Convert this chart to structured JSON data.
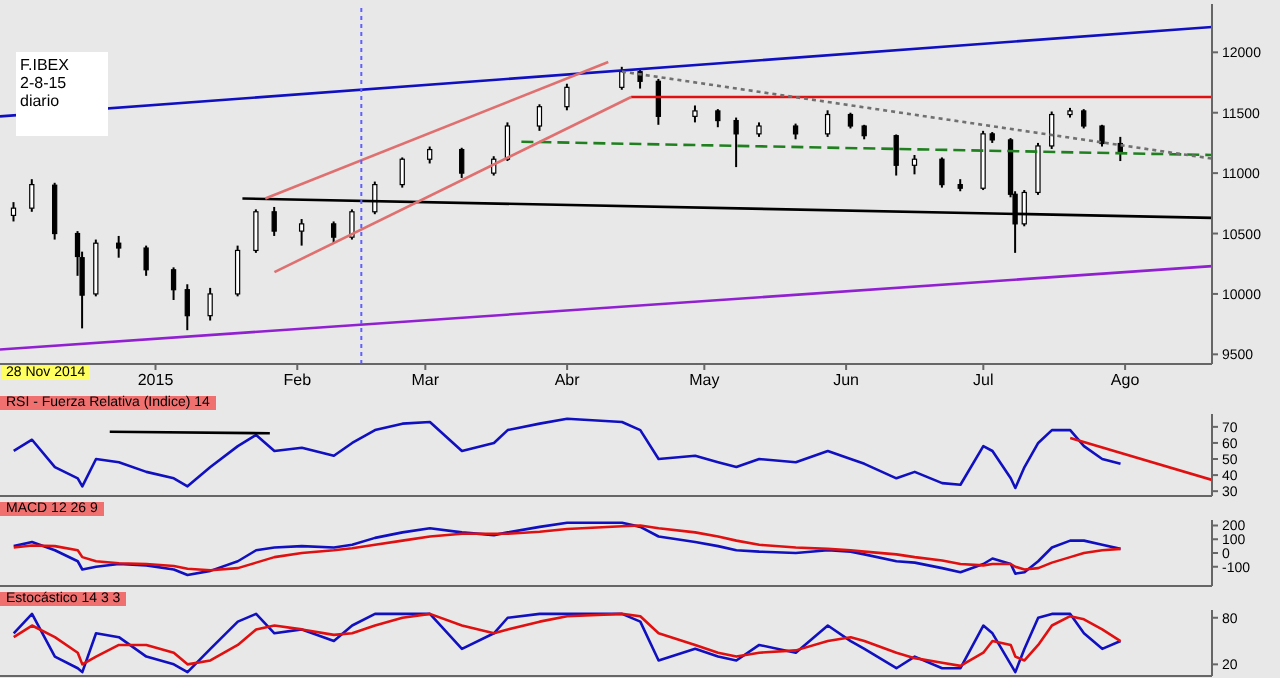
{
  "chart_data": [
    {
      "type": "candlestick",
      "annotations": [
        "F.IBEX\n2-8-15\ndiario",
        "28 Nov 2014"
      ],
      "x": [
        "2014-12-01",
        "2014-12-05",
        "2014-12-10",
        "2014-12-15",
        "2014-12-16",
        "2014-12-19",
        "2014-12-24",
        "2014-12-30",
        "2015-01-05",
        "2015-01-08",
        "2015-01-13",
        "2015-01-19",
        "2015-01-23",
        "2015-01-27",
        "2015-02-02",
        "2015-02-09",
        "2015-02-13",
        "2015-02-18",
        "2015-02-24",
        "2015-03-02",
        "2015-03-09",
        "2015-03-16",
        "2015-03-19",
        "2015-03-26",
        "2015-04-01",
        "2015-04-13",
        "2015-04-17",
        "2015-04-21",
        "2015-04-29",
        "2015-05-04",
        "2015-05-08",
        "2015-05-13",
        "2015-05-21",
        "2015-05-28",
        "2015-06-02",
        "2015-06-05",
        "2015-06-12",
        "2015-06-16",
        "2015-06-22",
        "2015-06-26",
        "2015-07-01",
        "2015-07-03",
        "2015-07-07",
        "2015-07-08",
        "2015-07-10",
        "2015-07-13",
        "2015-07-16",
        "2015-07-20",
        "2015-07-23",
        "2015-07-27",
        "2015-07-31"
      ],
      "ohlc": [
        [
          10650,
          10760,
          10600,
          10710
        ],
        [
          10710,
          10950,
          10680,
          10905
        ],
        [
          10900,
          10920,
          10450,
          10500
        ],
        [
          10500,
          10520,
          10150,
          10310
        ],
        [
          10300,
          10350,
          9715,
          9990
        ],
        [
          10000,
          10450,
          9980,
          10420
        ],
        [
          10420,
          10480,
          10300,
          10380
        ],
        [
          10380,
          10400,
          10150,
          10200
        ],
        [
          10200,
          10220,
          9950,
          10035
        ],
        [
          10035,
          10080,
          9700,
          9820
        ],
        [
          9820,
          10050,
          9780,
          10000
        ],
        [
          10000,
          10400,
          9980,
          10360
        ],
        [
          10360,
          10700,
          10340,
          10680
        ],
        [
          10680,
          10720,
          10480,
          10520
        ],
        [
          10520,
          10620,
          10400,
          10580
        ],
        [
          10580,
          10600,
          10420,
          10470
        ],
        [
          10470,
          10700,
          10450,
          10680
        ],
        [
          10680,
          10930,
          10660,
          10905
        ],
        [
          10905,
          11130,
          10880,
          11115
        ],
        [
          11115,
          11220,
          11080,
          11195
        ],
        [
          11195,
          11210,
          10960,
          11000
        ],
        [
          11000,
          11140,
          10980,
          11115
        ],
        [
          11115,
          11420,
          11100,
          11390
        ],
        [
          11390,
          11570,
          11350,
          11550
        ],
        [
          11550,
          11740,
          11520,
          11710
        ],
        [
          11710,
          11880,
          11690,
          11840
        ],
        [
          11840,
          11860,
          11700,
          11760
        ],
        [
          11760,
          11780,
          11400,
          11470
        ],
        [
          11470,
          11560,
          11420,
          11515
        ],
        [
          11515,
          11530,
          11380,
          11435
        ],
        [
          11435,
          11460,
          11050,
          11325
        ],
        [
          11325,
          11420,
          11300,
          11390
        ],
        [
          11390,
          11410,
          11280,
          11325
        ],
        [
          11325,
          11520,
          11300,
          11485
        ],
        [
          11485,
          11500,
          11370,
          11390
        ],
        [
          11390,
          11400,
          11280,
          11310
        ],
        [
          11310,
          11320,
          10980,
          11065
        ],
        [
          11065,
          11150,
          10990,
          11115
        ],
        [
          11115,
          11130,
          10880,
          10905
        ],
        [
          10905,
          10950,
          10850,
          10875
        ],
        [
          10875,
          11350,
          10860,
          11325
        ],
        [
          11325,
          11340,
          11250,
          11275
        ],
        [
          11275,
          11290,
          10800,
          10825
        ],
        [
          10825,
          10850,
          10340,
          10580
        ],
        [
          10580,
          10860,
          10560,
          10840
        ],
        [
          10840,
          11250,
          10820,
          11225
        ],
        [
          11225,
          11510,
          11200,
          11485
        ],
        [
          11485,
          11540,
          11460,
          11515
        ],
        [
          11515,
          11530,
          11370,
          11390
        ],
        [
          11390,
          11400,
          11220,
          11245
        ],
        [
          11245,
          11300,
          11100,
          11170
        ]
      ],
      "series": [
        {
          "type": "line",
          "color": "#1010c0",
          "x": [
            "2014-11-28",
            "2015-08-20"
          ],
          "values": [
            11470,
            12210
          ]
        },
        {
          "type": "line",
          "color": "#9020d0",
          "x": [
            "2014-11-28",
            "2015-08-20"
          ],
          "values": [
            9540,
            10230
          ]
        },
        {
          "type": "line",
          "color": "#000000",
          "x": [
            "2015-01-20",
            "2015-08-20"
          ],
          "values": [
            10790,
            10630
          ]
        },
        {
          "type": "line",
          "color": "#e01010",
          "x": [
            "2015-04-15",
            "2015-08-20"
          ],
          "values": [
            11630,
            11630
          ]
        },
        {
          "type": "line",
          "color": "#208020",
          "line_style": "dashed",
          "x": [
            "2015-03-22",
            "2015-08-20"
          ],
          "values": [
            11260,
            11150
          ]
        },
        {
          "type": "line",
          "color": "#e07070",
          "x": [
            "2015-01-27",
            "2015-04-15"
          ],
          "values": [
            10180,
            11630
          ]
        },
        {
          "type": "line",
          "color": "#e07070",
          "x": [
            "2015-01-25",
            "2015-04-10"
          ],
          "values": [
            10790,
            11920
          ]
        },
        {
          "type": "line",
          "color": "#707070",
          "line_style": "dotted",
          "x": [
            "2015-04-13",
            "2015-08-20"
          ],
          "values": [
            11840,
            11120
          ]
        }
      ],
      "ref_lines": [
        {
          "axis": "x",
          "value": "2015-02-15",
          "color": "#6060ff",
          "line_style": "dotted"
        }
      ],
      "xlim": [
        "2014-11-28",
        "2015-08-20"
      ],
      "xticks": [
        {
          "value": "2015-01-01",
          "label": "2015"
        },
        {
          "value": "2015-02-01",
          "label": "Feb"
        },
        {
          "value": "2015-03-01",
          "label": "Mar"
        },
        {
          "value": "2015-04-01",
          "label": "Abr"
        },
        {
          "value": "2015-05-01",
          "label": "May"
        },
        {
          "value": "2015-06-01",
          "label": "Jun"
        },
        {
          "value": "2015-07-01",
          "label": "Jul"
        },
        {
          "value": "2015-08-01",
          "label": "Ago"
        }
      ],
      "ylim": [
        9420,
        12400
      ],
      "yticks": [
        9500,
        10000,
        10500,
        11000,
        11500,
        12000
      ],
      "grid": false
    },
    {
      "type": "line",
      "title": "RSI - Fuerza Relativa (Indice) 14",
      "tick_labels": "y",
      "xlim": [
        "2014-11-28",
        "2015-08-20"
      ],
      "x": [
        "2014-12-01",
        "2014-12-05",
        "2014-12-10",
        "2014-12-15",
        "2014-12-16",
        "2014-12-19",
        "2014-12-24",
        "2014-12-30",
        "2015-01-05",
        "2015-01-08",
        "2015-01-13",
        "2015-01-19",
        "2015-01-23",
        "2015-01-27",
        "2015-02-02",
        "2015-02-09",
        "2015-02-13",
        "2015-02-18",
        "2015-02-24",
        "2015-03-02",
        "2015-03-09",
        "2015-03-16",
        "2015-03-19",
        "2015-03-26",
        "2015-04-01",
        "2015-04-13",
        "2015-04-17",
        "2015-04-21",
        "2015-04-29",
        "2015-05-04",
        "2015-05-08",
        "2015-05-13",
        "2015-05-21",
        "2015-05-28",
        "2015-06-02",
        "2015-06-05",
        "2015-06-12",
        "2015-06-16",
        "2015-06-22",
        "2015-06-26",
        "2015-07-01",
        "2015-07-03",
        "2015-07-07",
        "2015-07-08",
        "2015-07-10",
        "2015-07-13",
        "2015-07-16",
        "2015-07-20",
        "2015-07-23",
        "2015-07-27",
        "2015-07-31"
      ],
      "series": [
        {
          "color": "#1010c0",
          "values": [
            55,
            62,
            45,
            38,
            33,
            50,
            48,
            42,
            38,
            33,
            45,
            58,
            65,
            55,
            57,
            52,
            60,
            68,
            72,
            73,
            55,
            60,
            68,
            72,
            75,
            73,
            68,
            50,
            52,
            48,
            45,
            50,
            48,
            55,
            50,
            47,
            38,
            42,
            35,
            34,
            58,
            55,
            38,
            32,
            45,
            60,
            68,
            68,
            58,
            50,
            47
          ]
        },
        {
          "color": "#000000",
          "x": [
            "2014-12-22",
            "2015-01-26"
          ],
          "values": [
            67,
            66
          ]
        },
        {
          "color": "#e01010",
          "x": [
            "2015-07-20",
            "2015-08-20"
          ],
          "values": [
            63,
            37
          ]
        }
      ],
      "ylim": [
        27,
        78
      ],
      "yticks": [
        30,
        40,
        50,
        60,
        70
      ],
      "grid": false
    },
    {
      "type": "line",
      "title": "MACD 12 26 9",
      "tick_labels": "y",
      "xlim": [
        "2014-11-28",
        "2015-08-20"
      ],
      "x": [
        "2014-12-01",
        "2014-12-05",
        "2014-12-10",
        "2014-12-15",
        "2014-12-16",
        "2014-12-19",
        "2014-12-24",
        "2014-12-30",
        "2015-01-05",
        "2015-01-08",
        "2015-01-13",
        "2015-01-19",
        "2015-01-23",
        "2015-01-27",
        "2015-02-02",
        "2015-02-09",
        "2015-02-13",
        "2015-02-18",
        "2015-02-24",
        "2015-03-02",
        "2015-03-09",
        "2015-03-16",
        "2015-03-19",
        "2015-03-26",
        "2015-04-01",
        "2015-04-13",
        "2015-04-17",
        "2015-04-21",
        "2015-04-29",
        "2015-05-04",
        "2015-05-08",
        "2015-05-13",
        "2015-05-21",
        "2015-05-28",
        "2015-06-02",
        "2015-06-05",
        "2015-06-12",
        "2015-06-16",
        "2015-06-22",
        "2015-06-26",
        "2015-07-01",
        "2015-07-03",
        "2015-07-07",
        "2015-07-08",
        "2015-07-10",
        "2015-07-13",
        "2015-07-16",
        "2015-07-20",
        "2015-07-23",
        "2015-07-27",
        "2015-07-31"
      ],
      "series": [
        {
          "color": "#1010c0",
          "values": [
            50,
            80,
            20,
            -60,
            -120,
            -100,
            -80,
            -90,
            -120,
            -160,
            -130,
            -60,
            20,
            40,
            50,
            40,
            60,
            110,
            150,
            180,
            150,
            130,
            150,
            190,
            220,
            220,
            190,
            120,
            80,
            50,
            20,
            10,
            0,
            20,
            10,
            -10,
            -60,
            -70,
            -110,
            -140,
            -80,
            -40,
            -80,
            -150,
            -140,
            -60,
            40,
            90,
            90,
            60,
            30
          ]
        },
        {
          "color": "#e01010",
          "values": [
            40,
            55,
            50,
            20,
            -30,
            -60,
            -75,
            -80,
            -95,
            -115,
            -125,
            -110,
            -70,
            -30,
            0,
            20,
            35,
            60,
            90,
            120,
            140,
            140,
            140,
            155,
            175,
            195,
            200,
            180,
            150,
            120,
            90,
            60,
            40,
            30,
            20,
            10,
            -10,
            -30,
            -55,
            -80,
            -90,
            -80,
            -80,
            -100,
            -120,
            -110,
            -70,
            -30,
            0,
            20,
            30
          ]
        }
      ],
      "ylim": [
        -240,
        240
      ],
      "yticks": [
        -100,
        0,
        100,
        200
      ],
      "grid": false
    },
    {
      "type": "line",
      "title": "Estocástico 14 3 3",
      "tick_labels": "y",
      "xlim": [
        "2014-11-28",
        "2015-08-20"
      ],
      "x": [
        "2014-12-01",
        "2014-12-05",
        "2014-12-10",
        "2014-12-15",
        "2014-12-16",
        "2014-12-19",
        "2014-12-24",
        "2014-12-30",
        "2015-01-05",
        "2015-01-08",
        "2015-01-13",
        "2015-01-19",
        "2015-01-23",
        "2015-01-27",
        "2015-02-02",
        "2015-02-09",
        "2015-02-13",
        "2015-02-18",
        "2015-02-24",
        "2015-03-02",
        "2015-03-09",
        "2015-03-16",
        "2015-03-19",
        "2015-03-26",
        "2015-04-01",
        "2015-04-13",
        "2015-04-17",
        "2015-04-21",
        "2015-04-29",
        "2015-05-04",
        "2015-05-08",
        "2015-05-13",
        "2015-05-21",
        "2015-05-28",
        "2015-06-02",
        "2015-06-05",
        "2015-06-12",
        "2015-06-16",
        "2015-06-22",
        "2015-06-26",
        "2015-07-01",
        "2015-07-03",
        "2015-07-07",
        "2015-07-08",
        "2015-07-10",
        "2015-07-13",
        "2015-07-16",
        "2015-07-20",
        "2015-07-23",
        "2015-07-27",
        "2015-07-31"
      ],
      "series": [
        {
          "color": "#1010c0",
          "values": [
            60,
            85,
            30,
            15,
            10,
            60,
            55,
            30,
            20,
            10,
            40,
            75,
            85,
            60,
            65,
            50,
            70,
            85,
            85,
            85,
            40,
            60,
            80,
            85,
            85,
            85,
            75,
            25,
            40,
            30,
            25,
            45,
            35,
            70,
            50,
            40,
            15,
            30,
            15,
            15,
            70,
            60,
            20,
            10,
            40,
            80,
            85,
            85,
            60,
            40,
            50
          ]
        },
        {
          "color": "#e01010",
          "values": [
            55,
            70,
            55,
            35,
            20,
            30,
            45,
            45,
            35,
            20,
            25,
            45,
            65,
            70,
            65,
            58,
            60,
            70,
            80,
            85,
            70,
            60,
            65,
            75,
            82,
            85,
            82,
            60,
            45,
            35,
            30,
            35,
            38,
            50,
            55,
            50,
            35,
            28,
            22,
            18,
            35,
            50,
            45,
            30,
            25,
            45,
            70,
            82,
            78,
            65,
            50
          ]
        }
      ],
      "ylim": [
        5,
        90
      ],
      "yticks": [
        20,
        80
      ],
      "grid": false
    }
  ]
}
